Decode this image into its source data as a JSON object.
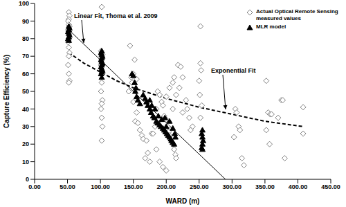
{
  "chart_data": {
    "type": "scatter",
    "xlabel": "WARD (m)",
    "ylabel": "Capture Efficiency (%)",
    "xlim": [
      0,
      450
    ],
    "xticks": [
      {
        "value": 0,
        "label": "0.00"
      },
      {
        "value": 50,
        "label": "50.00"
      },
      {
        "value": 100,
        "label": "100.00"
      },
      {
        "value": 150,
        "label": "150.00"
      },
      {
        "value": 200,
        "label": "200.00"
      },
      {
        "value": 250,
        "label": "250.00"
      },
      {
        "value": 300,
        "label": "300.00"
      },
      {
        "value": 350,
        "label": "350.00"
      },
      {
        "value": 400,
        "label": "400.00"
      },
      {
        "value": 450,
        "label": "450.00"
      }
    ],
    "ylim": [
      0,
      100
    ],
    "yticks": [
      0,
      10,
      20,
      30,
      40,
      50,
      60,
      70,
      80,
      90,
      100
    ],
    "grid": false,
    "legend": "upper right",
    "series": [
      {
        "name": "Actual Optical Remote Sensing measured values",
        "type": "scatter",
        "marker": "diamond",
        "color": "#808080",
        "x": [
          52,
          53,
          52,
          51,
          52,
          53,
          52,
          51,
          52,
          53,
          52,
          51,
          52,
          53,
          52,
          51,
          52,
          53,
          52,
          102,
          101,
          103,
          102,
          101,
          103,
          102,
          101,
          103,
          102,
          101,
          102,
          103,
          102,
          145,
          152,
          150,
          147,
          155,
          148,
          143,
          150,
          155,
          153,
          157,
          160,
          163,
          165,
          170,
          172,
          168,
          175,
          178,
          180,
          183,
          185,
          187,
          190,
          193,
          195,
          197,
          200,
          202,
          204,
          205,
          207,
          210,
          212,
          214,
          215,
          200,
          205,
          210,
          212,
          218,
          222,
          225,
          220,
          230,
          232,
          225,
          235,
          240,
          237,
          185,
          190,
          195,
          200,
          210,
          215,
          252,
          252,
          253,
          250,
          251,
          254,
          252,
          305,
          307,
          310,
          312,
          315,
          318,
          303,
          352,
          355,
          358,
          360,
          352,
          357,
          375,
          377,
          370,
          380,
          408,
          408
        ],
        "values": [
          95,
          93,
          91,
          90,
          88,
          87,
          86,
          85,
          84,
          83,
          80,
          78,
          75,
          72,
          70,
          65,
          60,
          56,
          55,
          98,
          73,
          71,
          68,
          65,
          60,
          55,
          50,
          45,
          43,
          40,
          35,
          30,
          22,
          76,
          68,
          60,
          58,
          57,
          55,
          50,
          44,
          38,
          33,
          32,
          28,
          25,
          23,
          22,
          15,
          12,
          10,
          26,
          26,
          30,
          40,
          50,
          48,
          44,
          42,
          36,
          34,
          30,
          27,
          25,
          22,
          20,
          17,
          14,
          12,
          47,
          52,
          55,
          58,
          65,
          64,
          58,
          52,
          45,
          40,
          38,
          35,
          30,
          28,
          17,
          10,
          7,
          5,
          40,
          48,
          87,
          66,
          62,
          56,
          48,
          42,
          35,
          40,
          38,
          30,
          28,
          12,
          8,
          24,
          56,
          38,
          37,
          37,
          28,
          20,
          45,
          45,
          35,
          12,
          41,
          26
        ]
      },
      {
        "name": "MLR model",
        "type": "scatter",
        "marker": "triangle",
        "color": "#000000",
        "x": [
          52,
          53,
          52,
          51,
          52,
          53,
          52,
          51,
          52,
          102,
          101,
          102,
          103,
          102,
          101,
          102,
          103,
          102,
          101,
          102,
          103,
          102,
          101,
          102,
          148,
          150,
          152,
          154,
          153,
          155,
          157,
          160,
          165,
          168,
          170,
          172,
          175,
          177,
          180,
          182,
          185,
          187,
          190,
          192,
          195,
          197,
          199,
          201,
          203,
          205,
          207,
          208,
          210,
          212,
          213,
          200,
          198,
          205,
          175,
          178,
          183,
          188,
          193,
          210,
          214,
          255,
          254,
          255,
          256,
          255,
          254,
          255
        ],
        "values": [
          87,
          86,
          85,
          84,
          83,
          82,
          81,
          80,
          79,
          73,
          72,
          71,
          70,
          69,
          68,
          67,
          66,
          65,
          64,
          63,
          62,
          61,
          60,
          58,
          60,
          59,
          55,
          52,
          50,
          47,
          45,
          43,
          48,
          46,
          44,
          42,
          40,
          38,
          36,
          35,
          33,
          32,
          31,
          30,
          29,
          28,
          27,
          26,
          25,
          24,
          23,
          22,
          21,
          20,
          26,
          30,
          35,
          33,
          45,
          42,
          40,
          36,
          34,
          29,
          24,
          28,
          26,
          24,
          22,
          20,
          18,
          17
        ]
      },
      {
        "name": "Linear Fit, Thoma et al. 2009",
        "type": "line",
        "line_style": "solid",
        "color": "#000000",
        "x": [
          52,
          290
        ],
        "values": [
          85,
          0
        ]
      },
      {
        "name": "Exponential Fit",
        "type": "line",
        "line_style": "dashed",
        "color": "#000000",
        "x": [
          52,
          75,
          100,
          125,
          150,
          175,
          200,
          250,
          300,
          350,
          408
        ],
        "values": [
          72,
          66,
          61,
          56,
          52,
          49,
          46,
          41,
          37,
          33,
          30
        ]
      }
    ]
  }
}
